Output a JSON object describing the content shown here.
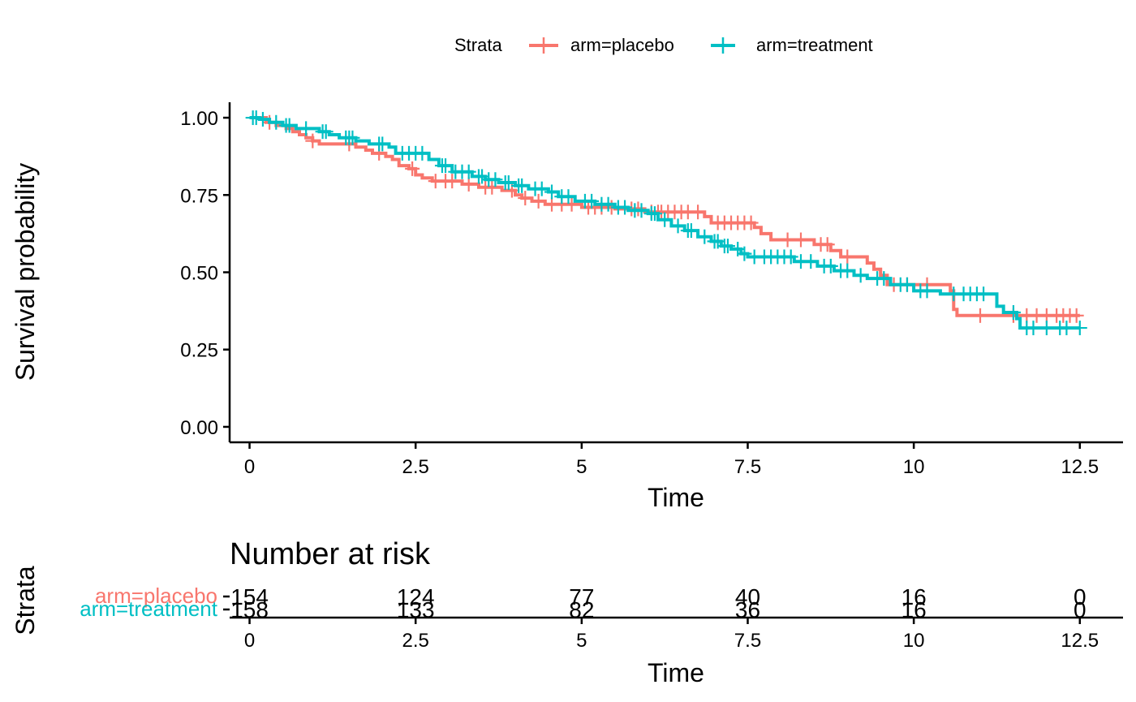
{
  "chart_data": [
    {
      "type": "line",
      "subtype": "kaplan-meier step",
      "legend": {
        "title": "Strata",
        "position": "top"
      },
      "xlabel": "Time",
      "ylabel": "Survival probability",
      "xlim": [
        -0.3,
        13.15
      ],
      "ylim": [
        -0.05,
        1.05
      ],
      "xticks": [
        "0",
        "2.5",
        "5",
        "7.5",
        "10",
        "12.5"
      ],
      "yticks": [
        "0.00",
        "0.25",
        "0.50",
        "0.75",
        "1.00"
      ],
      "grid": false,
      "series": [
        {
          "name": "arm=placebo",
          "color": "#F8766D",
          "steps": [
            [
              0,
              1.0
            ],
            [
              0.25,
              0.985
            ],
            [
              0.4,
              0.975
            ],
            [
              0.55,
              0.965
            ],
            [
              0.65,
              0.955
            ],
            [
              0.75,
              0.945
            ],
            [
              0.85,
              0.935
            ],
            [
              0.95,
              0.925
            ],
            [
              1.05,
              0.915
            ],
            [
              1.6,
              0.905
            ],
            [
              1.75,
              0.895
            ],
            [
              1.85,
              0.885
            ],
            [
              2.05,
              0.875
            ],
            [
              2.15,
              0.865
            ],
            [
              2.25,
              0.845
            ],
            [
              2.4,
              0.835
            ],
            [
              2.5,
              0.815
            ],
            [
              2.6,
              0.805
            ],
            [
              2.75,
              0.795
            ],
            [
              3.2,
              0.785
            ],
            [
              3.45,
              0.775
            ],
            [
              3.8,
              0.765
            ],
            [
              4.0,
              0.75
            ],
            [
              4.1,
              0.74
            ],
            [
              4.25,
              0.73
            ],
            [
              4.45,
              0.72
            ],
            [
              5.0,
              0.71
            ],
            [
              5.5,
              0.705
            ],
            [
              5.95,
              0.695
            ],
            [
              6.85,
              0.68
            ],
            [
              6.95,
              0.66
            ],
            [
              7.6,
              0.645
            ],
            [
              7.7,
              0.625
            ],
            [
              7.85,
              0.605
            ],
            [
              8.5,
              0.59
            ],
            [
              8.75,
              0.57
            ],
            [
              8.9,
              0.55
            ],
            [
              9.3,
              0.53
            ],
            [
              9.4,
              0.51
            ],
            [
              9.5,
              0.49
            ],
            [
              9.6,
              0.46
            ],
            [
              10.55,
              0.44
            ],
            [
              10.6,
              0.38
            ],
            [
              10.65,
              0.36
            ],
            [
              12.5,
              0.36
            ]
          ],
          "censored": [
            [
              0.3,
              0.985
            ],
            [
              0.95,
              0.925
            ],
            [
              1.5,
              0.915
            ],
            [
              1.95,
              0.885
            ],
            [
              2.45,
              0.835
            ],
            [
              2.8,
              0.795
            ],
            [
              2.95,
              0.795
            ],
            [
              3.05,
              0.795
            ],
            [
              3.3,
              0.785
            ],
            [
              3.55,
              0.775
            ],
            [
              3.65,
              0.775
            ],
            [
              3.95,
              0.765
            ],
            [
              4.15,
              0.74
            ],
            [
              4.35,
              0.73
            ],
            [
              4.55,
              0.72
            ],
            [
              4.7,
              0.72
            ],
            [
              4.85,
              0.72
            ],
            [
              5.1,
              0.71
            ],
            [
              5.2,
              0.71
            ],
            [
              5.3,
              0.71
            ],
            [
              5.45,
              0.71
            ],
            [
              5.75,
              0.705
            ],
            [
              5.85,
              0.705
            ],
            [
              6.05,
              0.695
            ],
            [
              6.15,
              0.695
            ],
            [
              6.2,
              0.695
            ],
            [
              6.3,
              0.695
            ],
            [
              6.4,
              0.695
            ],
            [
              6.5,
              0.695
            ],
            [
              6.6,
              0.695
            ],
            [
              6.75,
              0.695
            ],
            [
              7.05,
              0.66
            ],
            [
              7.15,
              0.66
            ],
            [
              7.25,
              0.66
            ],
            [
              7.35,
              0.66
            ],
            [
              7.45,
              0.66
            ],
            [
              7.55,
              0.66
            ],
            [
              8.1,
              0.605
            ],
            [
              8.3,
              0.605
            ],
            [
              8.6,
              0.59
            ],
            [
              8.7,
              0.59
            ],
            [
              9.0,
              0.55
            ],
            [
              9.7,
              0.46
            ],
            [
              9.9,
              0.46
            ],
            [
              10.2,
              0.46
            ],
            [
              11.0,
              0.36
            ],
            [
              11.5,
              0.36
            ],
            [
              11.7,
              0.36
            ],
            [
              11.85,
              0.36
            ],
            [
              12.0,
              0.36
            ],
            [
              12.15,
              0.36
            ],
            [
              12.25,
              0.36
            ],
            [
              12.35,
              0.36
            ],
            [
              12.45,
              0.36
            ]
          ]
        },
        {
          "name": "arm=treatment",
          "color": "#00BFC4",
          "steps": [
            [
              0,
              1.0
            ],
            [
              0.15,
              0.995
            ],
            [
              0.3,
              0.985
            ],
            [
              0.5,
              0.975
            ],
            [
              0.7,
              0.965
            ],
            [
              1.05,
              0.955
            ],
            [
              1.2,
              0.945
            ],
            [
              1.35,
              0.935
            ],
            [
              1.6,
              0.925
            ],
            [
              1.8,
              0.915
            ],
            [
              2.1,
              0.905
            ],
            [
              2.2,
              0.885
            ],
            [
              2.7,
              0.865
            ],
            [
              2.85,
              0.845
            ],
            [
              3.05,
              0.825
            ],
            [
              3.35,
              0.81
            ],
            [
              3.55,
              0.8
            ],
            [
              3.75,
              0.79
            ],
            [
              4.0,
              0.78
            ],
            [
              4.2,
              0.77
            ],
            [
              4.5,
              0.76
            ],
            [
              4.65,
              0.745
            ],
            [
              4.9,
              0.73
            ],
            [
              5.2,
              0.72
            ],
            [
              5.5,
              0.71
            ],
            [
              5.7,
              0.7
            ],
            [
              6.0,
              0.69
            ],
            [
              6.15,
              0.67
            ],
            [
              6.35,
              0.65
            ],
            [
              6.55,
              0.635
            ],
            [
              6.75,
              0.615
            ],
            [
              6.95,
              0.6
            ],
            [
              7.1,
              0.585
            ],
            [
              7.25,
              0.575
            ],
            [
              7.4,
              0.56
            ],
            [
              7.5,
              0.55
            ],
            [
              8.2,
              0.535
            ],
            [
              8.55,
              0.52
            ],
            [
              8.8,
              0.505
            ],
            [
              9.1,
              0.49
            ],
            [
              9.3,
              0.48
            ],
            [
              9.65,
              0.46
            ],
            [
              10.0,
              0.44
            ],
            [
              10.4,
              0.43
            ],
            [
              11.15,
              0.43
            ],
            [
              11.25,
              0.39
            ],
            [
              11.35,
              0.37
            ],
            [
              11.55,
              0.35
            ],
            [
              11.6,
              0.32
            ],
            [
              12.5,
              0.32
            ]
          ],
          "censored": [
            [
              0.05,
              1.0
            ],
            [
              0.1,
              1.0
            ],
            [
              0.2,
              0.995
            ],
            [
              0.4,
              0.985
            ],
            [
              0.55,
              0.975
            ],
            [
              0.6,
              0.975
            ],
            [
              0.85,
              0.965
            ],
            [
              1.1,
              0.955
            ],
            [
              1.15,
              0.955
            ],
            [
              1.45,
              0.935
            ],
            [
              1.5,
              0.935
            ],
            [
              1.55,
              0.935
            ],
            [
              1.95,
              0.915
            ],
            [
              2.0,
              0.915
            ],
            [
              2.3,
              0.885
            ],
            [
              2.4,
              0.885
            ],
            [
              2.5,
              0.885
            ],
            [
              2.6,
              0.885
            ],
            [
              2.9,
              0.845
            ],
            [
              2.95,
              0.845
            ],
            [
              3.1,
              0.825
            ],
            [
              3.2,
              0.825
            ],
            [
              3.3,
              0.825
            ],
            [
              3.45,
              0.81
            ],
            [
              3.5,
              0.81
            ],
            [
              3.6,
              0.8
            ],
            [
              3.7,
              0.8
            ],
            [
              3.85,
              0.79
            ],
            [
              3.9,
              0.79
            ],
            [
              4.05,
              0.78
            ],
            [
              4.1,
              0.78
            ],
            [
              4.3,
              0.77
            ],
            [
              4.4,
              0.77
            ],
            [
              4.55,
              0.76
            ],
            [
              4.7,
              0.745
            ],
            [
              4.8,
              0.745
            ],
            [
              5.05,
              0.73
            ],
            [
              5.15,
              0.73
            ],
            [
              5.3,
              0.72
            ],
            [
              5.4,
              0.72
            ],
            [
              5.55,
              0.71
            ],
            [
              5.65,
              0.71
            ],
            [
              5.8,
              0.7
            ],
            [
              5.9,
              0.7
            ],
            [
              6.05,
              0.69
            ],
            [
              6.1,
              0.69
            ],
            [
              6.25,
              0.67
            ],
            [
              6.45,
              0.65
            ],
            [
              6.6,
              0.635
            ],
            [
              6.65,
              0.635
            ],
            [
              6.85,
              0.615
            ],
            [
              7.0,
              0.6
            ],
            [
              7.05,
              0.6
            ],
            [
              7.15,
              0.585
            ],
            [
              7.2,
              0.585
            ],
            [
              7.35,
              0.575
            ],
            [
              7.45,
              0.56
            ],
            [
              7.6,
              0.55
            ],
            [
              7.75,
              0.55
            ],
            [
              7.85,
              0.55
            ],
            [
              7.95,
              0.55
            ],
            [
              8.05,
              0.55
            ],
            [
              8.15,
              0.55
            ],
            [
              8.3,
              0.535
            ],
            [
              8.45,
              0.535
            ],
            [
              8.65,
              0.52
            ],
            [
              8.75,
              0.52
            ],
            [
              8.9,
              0.505
            ],
            [
              9.0,
              0.505
            ],
            [
              9.2,
              0.49
            ],
            [
              9.45,
              0.48
            ],
            [
              9.55,
              0.48
            ],
            [
              9.8,
              0.46
            ],
            [
              9.9,
              0.46
            ],
            [
              10.1,
              0.44
            ],
            [
              10.2,
              0.44
            ],
            [
              10.6,
              0.43
            ],
            [
              10.75,
              0.43
            ],
            [
              10.85,
              0.43
            ],
            [
              10.95,
              0.43
            ],
            [
              11.05,
              0.43
            ],
            [
              11.5,
              0.37
            ],
            [
              11.7,
              0.32
            ],
            [
              11.8,
              0.32
            ],
            [
              12.0,
              0.32
            ],
            [
              12.2,
              0.32
            ],
            [
              12.3,
              0.32
            ],
            [
              12.5,
              0.32
            ]
          ]
        }
      ]
    },
    {
      "type": "table",
      "title": "Number at risk",
      "xlabel": "Time",
      "ylabel": "Strata",
      "xlim": [
        -0.3,
        13.15
      ],
      "xticks": [
        "0",
        "2.5",
        "5",
        "7.5",
        "10",
        "12.5"
      ],
      "times": [
        0,
        2.5,
        5,
        7.5,
        10,
        12.5
      ],
      "rows": [
        {
          "name": "arm=placebo",
          "color": "#F8766D",
          "counts": [
            "154",
            "124",
            "77",
            "40",
            "16",
            "0"
          ]
        },
        {
          "name": "arm=treatment",
          "color": "#00BFC4",
          "counts": [
            "158",
            "133",
            "82",
            "36",
            "16",
            "0"
          ]
        }
      ]
    }
  ]
}
